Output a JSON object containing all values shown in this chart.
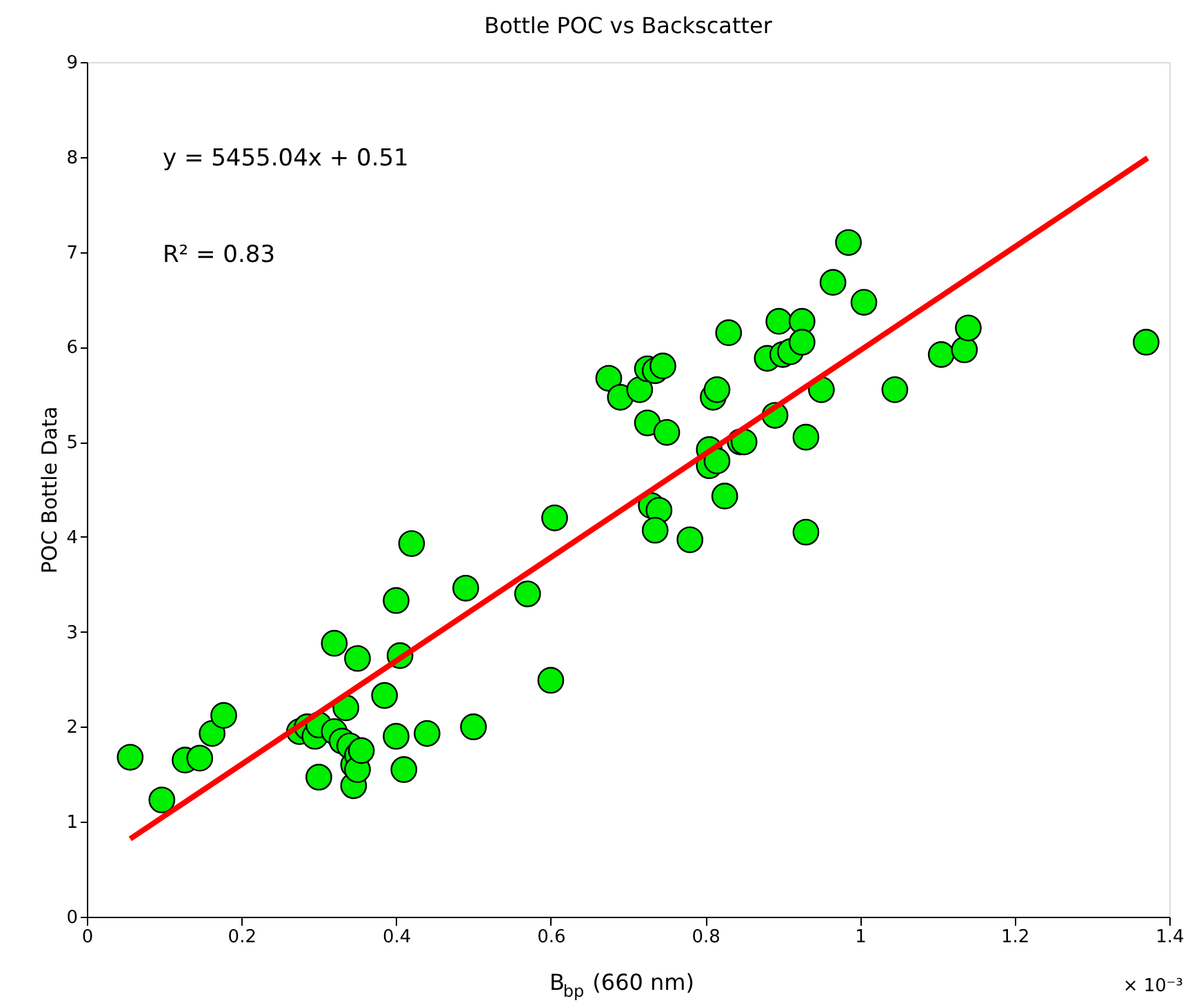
{
  "chart_data": {
    "type": "scatter",
    "title": "Bottle POC vs Backscatter",
    "xlabel": "B$_{bp}$ (660 nm)",
    "ylabel": "POC Bottle Data",
    "annotations": [
      "y = 5455.04x + 0.51",
      "R² = 0.83",
      "× 10⁻³"
    ],
    "xlim": [
      0,
      1.4
    ],
    "xticks": [
      0,
      0.2,
      0.4,
      0.6,
      0.8,
      1,
      1.2,
      1.4
    ],
    "ylim": [
      0,
      9
    ],
    "yticks": [
      0,
      1,
      2,
      3,
      4,
      5,
      6,
      7,
      8,
      9
    ],
    "grid": false,
    "marker": "circle",
    "series": [
      {
        "color": "#00ee00",
        "x": [
          0.056,
          0.097,
          0.127,
          0.146,
          0.162,
          0.177,
          0.275,
          0.285,
          0.295,
          0.3,
          0.3,
          0.32,
          0.32,
          0.33,
          0.335,
          0.34,
          0.345,
          0.345,
          0.35,
          0.35,
          0.355,
          0.35,
          0.385,
          0.4,
          0.4,
          0.405,
          0.41,
          0.42,
          0.44,
          0.49,
          0.5,
          0.57,
          0.6,
          0.605,
          0.675,
          0.69,
          0.715,
          0.725,
          0.725,
          0.73,
          0.735,
          0.74,
          0.735,
          0.745,
          0.75,
          0.78,
          0.805,
          0.805,
          0.81,
          0.815,
          0.815,
          0.825,
          0.83,
          0.845,
          0.85,
          0.88,
          0.89,
          0.895,
          0.9,
          0.91,
          0.925,
          0.925,
          0.93,
          0.93,
          0.95,
          0.965,
          0.985,
          1.005,
          1.045,
          1.105,
          1.135,
          1.14,
          1.37
        ],
        "values": [
          1.68,
          1.23,
          1.65,
          1.67,
          1.93,
          2.12,
          1.95,
          2.0,
          1.9,
          2.02,
          1.47,
          1.95,
          2.88,
          1.85,
          2.2,
          1.8,
          1.6,
          1.38,
          1.7,
          1.55,
          1.75,
          2.72,
          2.33,
          3.33,
          1.9,
          2.75,
          1.55,
          3.93,
          1.93,
          3.46,
          2.0,
          3.4,
          2.49,
          4.2,
          5.67,
          5.47,
          5.55,
          5.2,
          5.77,
          4.33,
          5.75,
          4.28,
          4.07,
          5.8,
          5.1,
          3.97,
          4.92,
          4.75,
          5.47,
          4.8,
          5.55,
          4.43,
          6.15,
          5.0,
          5.0,
          5.88,
          5.28,
          6.27,
          5.92,
          5.95,
          6.27,
          6.05,
          5.05,
          4.05,
          5.55,
          6.68,
          7.1,
          6.47,
          5.55,
          5.92,
          5.97,
          6.2,
          6.05
        ]
      },
      {
        "type": "line",
        "color": "#ff0000",
        "marker": "none",
        "line_style": "solid",
        "x": [
          0.056,
          1.372
        ],
        "values": [
          0.82,
          7.99
        ]
      }
    ]
  }
}
